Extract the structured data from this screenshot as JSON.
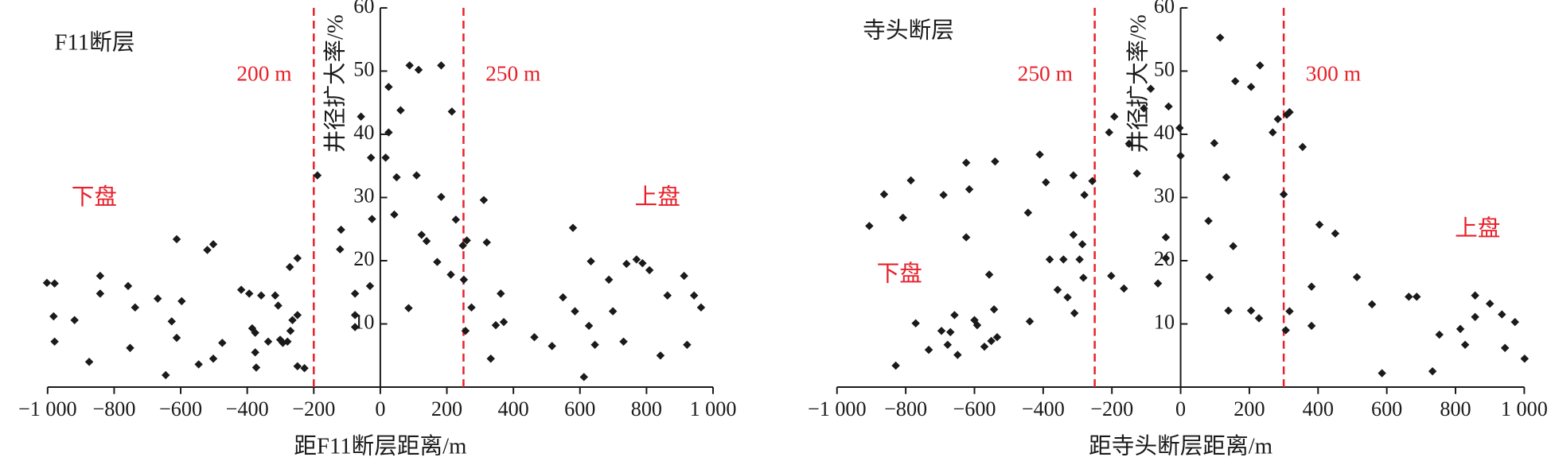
{
  "chart_data": [
    {
      "type": "scatter",
      "title": "F11断层",
      "xlabel": "距F11断层距离/m",
      "ylabel": "井径扩大率/%",
      "xlim": [
        -1000,
        1000
      ],
      "ylim": [
        0,
        60
      ],
      "xticks": [
        {
          "value": -1000,
          "label": "−1 000"
        },
        {
          "value": -800,
          "label": "−800"
        },
        {
          "value": -600,
          "label": "−600"
        },
        {
          "value": -400,
          "label": "−400"
        },
        {
          "value": -200,
          "label": "−200"
        },
        0,
        200,
        400,
        600,
        800,
        {
          "value": 1000,
          "label": "1 000"
        }
      ],
      "yticks": [
        10,
        20,
        30,
        40,
        50,
        60
      ],
      "color": "#1a1a1a",
      "line_color": "#e8202a",
      "vlines": [
        {
          "value": -200,
          "label": "200 m"
        },
        {
          "value": 250,
          "label": "250 m"
        }
      ],
      "annotations": [
        "下盘",
        "上盘"
      ],
      "series": [
        {
          "x": [
            -1002,
            -979,
            -982,
            -979,
            -919,
            -875,
            -842,
            -842,
            -758,
            -752,
            -737,
            -669,
            -645,
            -627,
            -612,
            -612,
            -597,
            -546,
            -520,
            -502,
            -502,
            -475,
            -418,
            -394,
            -385,
            -376,
            -376,
            -373,
            -358,
            -337,
            -316,
            -307,
            -301,
            -293,
            -279,
            -272,
            -270,
            -264,
            -249,
            -249,
            -228,
            -249,
            -189,
            -118,
            -121,
            -76,
            -76,
            -76,
            -31,
            -28,
            -25,
            -58,
            16,
            25,
            25,
            42,
            49,
            61,
            88,
            115,
            109,
            85,
            124,
            139,
            171,
            183,
            183,
            212,
            215,
            227,
            248,
            251,
            256,
            260,
            274,
            311,
            320,
            332,
            347,
            362,
            371,
            463,
            516,
            579,
            549,
            585,
            612,
            627,
            633,
            645,
            687,
            699,
            731,
            740,
            770,
            788,
            809,
            842,
            863,
            913,
            922,
            943,
            964
          ],
          "values": [
            16.5,
            16.4,
            11.2,
            7.2,
            10.6,
            4.0,
            17.6,
            14.8,
            16.0,
            6.2,
            12.6,
            14.0,
            1.9,
            10.4,
            7.8,
            23.4,
            13.6,
            3.6,
            21.7,
            22.6,
            4.5,
            7.0,
            15.4,
            14.8,
            9.3,
            8.6,
            5.5,
            3.1,
            14.5,
            7.2,
            14.5,
            12.9,
            7.5,
            7.0,
            7.2,
            19.0,
            8.9,
            10.6,
            20.4,
            3.3,
            3.0,
            11.4,
            33.5,
            24.9,
            21.8,
            14.8,
            11.4,
            9.5,
            16.0,
            36.3,
            26.6,
            42.8,
            36.3,
            47.5,
            40.3,
            27.3,
            33.2,
            43.8,
            50.9,
            50.2,
            33.5,
            12.5,
            24.1,
            23.1,
            19.8,
            50.9,
            30.1,
            17.8,
            43.6,
            26.5,
            22.4,
            17.0,
            8.9,
            23.2,
            12.6,
            29.6,
            22.9,
            4.5,
            9.8,
            14.8,
            10.3,
            7.9,
            6.5,
            25.2,
            14.2,
            12.0,
            1.6,
            9.7,
            19.9,
            6.7,
            17.0,
            12.0,
            7.2,
            19.5,
            20.2,
            19.6,
            18.5,
            5.0,
            14.5,
            17.6,
            6.7,
            14.5,
            12.6
          ]
        }
      ]
    },
    {
      "type": "scatter",
      "title": "寺头断层",
      "xlabel": "距寺头断层距离/m",
      "ylabel": "井径扩大率/%",
      "xlim": [
        -1000,
        1000
      ],
      "ylim": [
        0,
        60
      ],
      "xticks": [
        {
          "value": -1000,
          "label": "−1 000"
        },
        {
          "value": -800,
          "label": "−800"
        },
        {
          "value": -600,
          "label": "−600"
        },
        {
          "value": -400,
          "label": "−400"
        },
        {
          "value": -200,
          "label": "−200"
        },
        0,
        200,
        400,
        600,
        800,
        {
          "value": 1000,
          "label": "1 000"
        }
      ],
      "yticks": [
        10,
        20,
        30,
        40,
        50,
        60
      ],
      "color": "#1a1a1a",
      "line_color": "#e8202a",
      "vlines": [
        {
          "value": -250,
          "label": "250 m"
        },
        {
          "value": 300,
          "label": "300 m"
        }
      ],
      "annotations": [
        "下盘",
        "上盘"
      ],
      "series": [
        {
          "x": [
            -906,
            -863,
            -829,
            -808,
            -785,
            -771,
            -733,
            -696,
            -678,
            -658,
            -670,
            -649,
            -690,
            -624,
            -624,
            -615,
            -600,
            -592,
            -571,
            -557,
            -551,
            -543,
            -540,
            -534,
            -439,
            -444,
            -410,
            -392,
            -381,
            -358,
            -341,
            -329,
            -312,
            -312,
            -309,
            -294,
            -286,
            -283,
            -280,
            -257,
            -208,
            -202,
            -193,
            -165,
            -150,
            -127,
            -107,
            -87,
            -66,
            -43,
            -43,
            -35,
            0,
            -3,
            81,
            84,
            98,
            115,
            133,
            139,
            153,
            159,
            205,
            205,
            228,
            231,
            268,
            283,
            300,
            306,
            309,
            317,
            317,
            355,
            381,
            381,
            404,
            450,
            513,
            557,
            586,
            664,
            687,
            733,
            753,
            814,
            828,
            857,
            857,
            900,
            935,
            944,
            973,
            1001
          ],
          "values": [
            25.5,
            30.5,
            3.4,
            26.8,
            32.7,
            10.1,
            5.9,
            8.9,
            6.7,
            11.4,
            8.7,
            5.1,
            30.4,
            23.7,
            35.5,
            31.3,
            10.6,
            9.8,
            6.4,
            17.8,
            7.3,
            12.3,
            35.7,
            7.9,
            10.4,
            27.6,
            36.8,
            32.4,
            20.2,
            15.4,
            20.2,
            14.2,
            24.1,
            33.5,
            11.7,
            20.2,
            22.6,
            17.3,
            30.4,
            32.6,
            40.3,
            17.6,
            42.8,
            15.6,
            38.5,
            33.8,
            44.1,
            47.2,
            16.4,
            23.7,
            20.4,
            44.4,
            36.6,
            41.0,
            26.3,
            17.4,
            38.6,
            55.3,
            33.2,
            12.1,
            22.3,
            48.4,
            12.1,
            47.5,
            10.9,
            50.9,
            40.3,
            42.4,
            30.5,
            9.0,
            43.1,
            43.5,
            12.0,
            38.0,
            15.9,
            9.7,
            25.7,
            24.3,
            17.4,
            13.1,
            2.2,
            14.3,
            14.3,
            2.5,
            8.3,
            9.2,
            6.7,
            14.5,
            11.1,
            13.2,
            11.5,
            6.2,
            10.3,
            4.5
          ]
        }
      ]
    }
  ]
}
